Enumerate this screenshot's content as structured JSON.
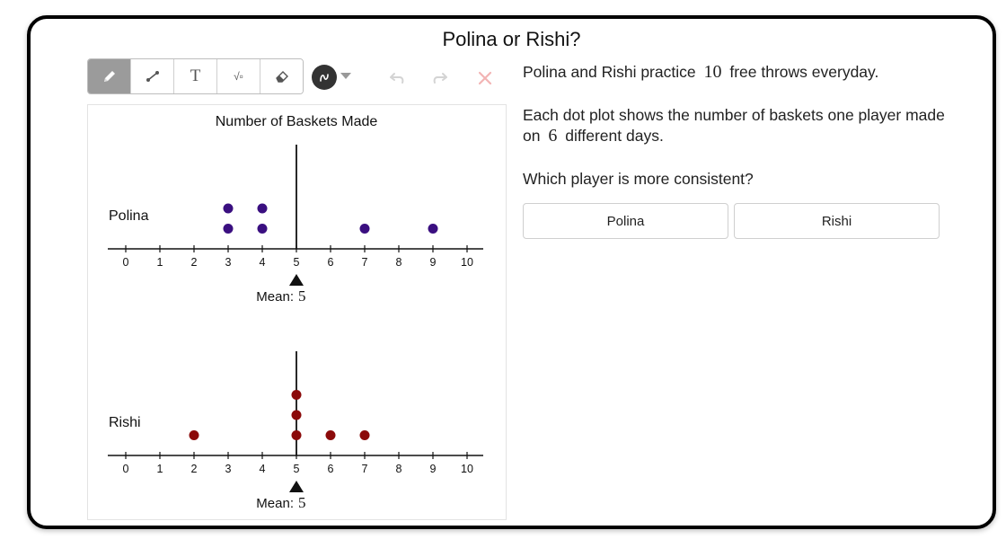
{
  "title": "Polina or Rishi?",
  "toolbar": {
    "tools": [
      {
        "name": "pencil-icon",
        "active": true
      },
      {
        "name": "line-icon"
      },
      {
        "name": "text-icon",
        "glyph": "T"
      },
      {
        "name": "math-icon",
        "glyph": "√▫"
      },
      {
        "name": "eraser-icon"
      }
    ],
    "color": "#333333"
  },
  "question": {
    "p1": {
      "pre": "Polina and Rishi practice",
      "num": "10",
      "post": "free throws everyday."
    },
    "p2": {
      "pre": "Each dot plot shows the number of baskets one player made on",
      "num": "6",
      "post": "different days."
    },
    "p3": "Which player is more consistent?",
    "choices": [
      "Polina",
      "Rishi"
    ]
  },
  "chart_data": {
    "type": "dot",
    "title": "Number of Baskets Made",
    "xlim": [
      0,
      10
    ],
    "ticks": [
      0,
      1,
      2,
      3,
      4,
      5,
      6,
      7,
      8,
      9,
      10
    ],
    "mean_label": "Mean:",
    "series": [
      {
        "name": "Polina",
        "color": "#3a0f80",
        "values": [
          3,
          3,
          4,
          4,
          7,
          9
        ],
        "mean": 5,
        "mean_text": "5"
      },
      {
        "name": "Rishi",
        "color": "#8b0a0a",
        "values": [
          2,
          5,
          5,
          5,
          6,
          7
        ],
        "mean": 5,
        "mean_text": "5"
      }
    ]
  }
}
